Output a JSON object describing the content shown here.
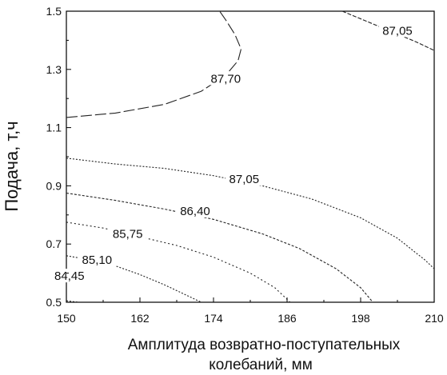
{
  "chart_data": {
    "type": "contour",
    "title": "",
    "xlabel_lines": [
      "Амплитуда возвратно-поступательных",
      "колебаний, мм"
    ],
    "ylabel": "Подача, т,ч",
    "xlim": [
      150,
      210
    ],
    "ylim": [
      0.5,
      1.5
    ],
    "x_ticks": [
      "150",
      "162",
      "174",
      "186",
      "198",
      "210"
    ],
    "y_ticks": [
      "0.5",
      "0.7",
      "0.9",
      "1.1",
      "1.3",
      "1.5"
    ],
    "contours": [
      {
        "level": "87,70",
        "points": [
          [
            150,
            1.135
          ],
          [
            158,
            1.15
          ],
          [
            166,
            1.18
          ],
          [
            172,
            1.225
          ],
          [
            176,
            1.28
          ],
          [
            178,
            1.33
          ],
          [
            178.5,
            1.37
          ],
          [
            177.5,
            1.42
          ],
          [
            176,
            1.47
          ],
          [
            175,
            1.5
          ]
        ],
        "label_at": [
          176,
          1.26
        ]
      },
      {
        "level": "87,05",
        "points": [
          [
            150,
            0.995
          ],
          [
            158,
            0.975
          ],
          [
            166,
            0.96
          ],
          [
            174,
            0.935
          ],
          [
            182,
            0.9
          ],
          [
            190,
            0.855
          ],
          [
            198,
            0.79
          ],
          [
            204,
            0.72
          ],
          [
            208.5,
            0.645
          ],
          [
            210,
            0.615
          ]
        ],
        "label_at": [
          179,
          0.915
        ]
      },
      {
        "level": "87,05",
        "points": [
          [
            195,
            1.5
          ],
          [
            199,
            1.465
          ],
          [
            203,
            1.43
          ],
          [
            207,
            1.395
          ],
          [
            210,
            1.365
          ]
        ],
        "label_at": [
          204,
          1.425
        ]
      },
      {
        "level": "86,40",
        "points": [
          [
            150,
            0.875
          ],
          [
            158,
            0.85
          ],
          [
            166,
            0.82
          ],
          [
            174,
            0.785
          ],
          [
            182,
            0.735
          ],
          [
            188,
            0.685
          ],
          [
            194,
            0.615
          ],
          [
            198,
            0.55
          ],
          [
            200,
            0.5
          ]
        ],
        "label_at": [
          171,
          0.805
        ]
      },
      {
        "level": "85,75",
        "points": [
          [
            150,
            0.775
          ],
          [
            156,
            0.755
          ],
          [
            162,
            0.725
          ],
          [
            168,
            0.695
          ],
          [
            174,
            0.655
          ],
          [
            180,
            0.6
          ],
          [
            184,
            0.55
          ],
          [
            186.5,
            0.5
          ]
        ],
        "label_at": [
          160,
          0.727
        ]
      },
      {
        "level": "85,10",
        "points": [
          [
            150,
            0.66
          ],
          [
            154,
            0.645
          ],
          [
            158,
            0.625
          ],
          [
            162,
            0.595
          ],
          [
            166,
            0.56
          ],
          [
            170,
            0.52
          ],
          [
            172,
            0.5
          ]
        ],
        "label_at": [
          155,
          0.637
        ]
      },
      {
        "level": "84,45",
        "points": [
          [
            150,
            0.505
          ],
          [
            152,
            0.5
          ]
        ],
        "label_at": [
          150.5,
          0.582
        ]
      }
    ]
  }
}
